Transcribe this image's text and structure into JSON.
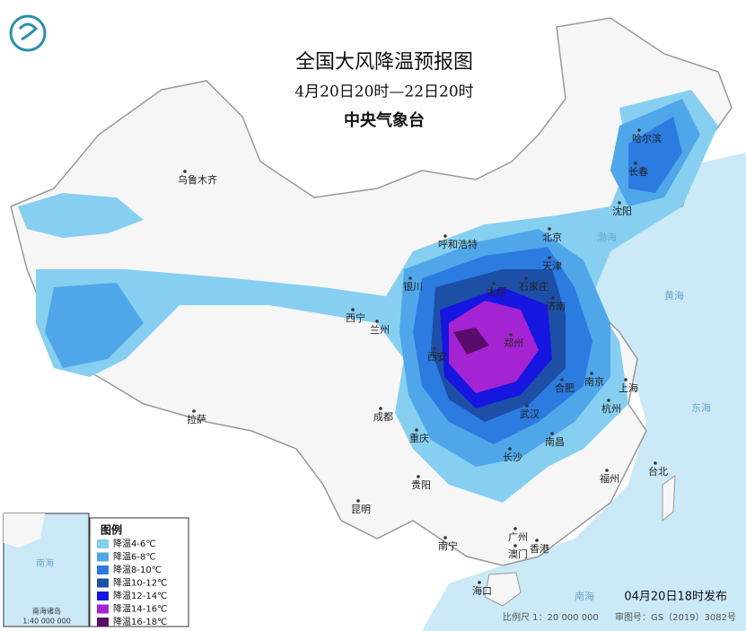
{
  "header": {
    "title": "全国大风降温预报图",
    "period": "4月20日20时—22日20时",
    "issuer": "中央气象台"
  },
  "legend": {
    "title": "图例",
    "items": [
      {
        "label": "降温4-6℃",
        "color": "#86cff0"
      },
      {
        "label": "降温6-8℃",
        "color": "#4fa7ea"
      },
      {
        "label": "降温8-10℃",
        "color": "#2b7be0"
      },
      {
        "label": "降温10-12℃",
        "color": "#1d4fa6"
      },
      {
        "label": "降温12-14℃",
        "color": "#1616e0"
      },
      {
        "label": "降温14-16℃",
        "color": "#a424d4"
      },
      {
        "label": "降温16-18℃",
        "color": "#5a0c6a"
      }
    ]
  },
  "cities": [
    "乌鲁木齐",
    "哈尔滨",
    "长春",
    "沈阳",
    "呼和浩特",
    "北京",
    "天津",
    "银川",
    "太原",
    "石家庄",
    "济南",
    "西宁",
    "兰州",
    "郑州",
    "西安",
    "合肥",
    "南京",
    "上海",
    "武汉",
    "杭州",
    "成都",
    "重庆",
    "长沙",
    "南昌",
    "拉萨",
    "贵阳",
    "福州",
    "台北",
    "昆明",
    "南宁",
    "广州",
    "香港",
    "澳门",
    "海口"
  ],
  "seas": [
    "渤海",
    "黄海",
    "东海",
    "南海"
  ],
  "inset": {
    "label": "南海诸岛",
    "scale": "1:40 000 000"
  },
  "footer": {
    "issued": "04月20日18时发布",
    "scale": "比例尺 1：20 000 000",
    "map_number": "审图号：GS（2019）3082号"
  }
}
